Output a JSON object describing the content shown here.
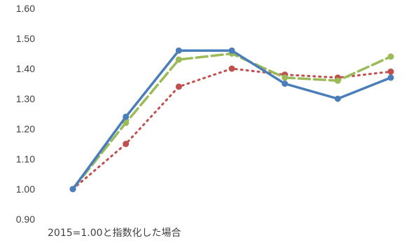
{
  "chart_data": {
    "type": "line",
    "title": "",
    "xlabel": "",
    "ylabel": "",
    "note": "2015=1.00と指数化した場合",
    "ylim": [
      0.9,
      1.6
    ],
    "yticks": [
      "0.90",
      "1.00",
      "1.10",
      "1.20",
      "1.30",
      "1.40",
      "1.50",
      "1.60"
    ],
    "grid": false,
    "legend": "none",
    "x": [
      1,
      2,
      3,
      4,
      5,
      6,
      7
    ],
    "series": [
      {
        "color": "#4a7ebb",
        "dash": "solid",
        "values": [
          1.0,
          1.24,
          1.46,
          1.46,
          1.35,
          1.3,
          1.37
        ]
      },
      {
        "color": "#c0504d",
        "dash": "dotted",
        "values": [
          1.0,
          1.15,
          1.34,
          1.4,
          1.38,
          1.37,
          1.39
        ]
      },
      {
        "color": "#9bbb59",
        "dash": "dashed",
        "values": [
          1.0,
          1.22,
          1.43,
          1.45,
          1.37,
          1.36,
          1.44
        ]
      }
    ]
  }
}
